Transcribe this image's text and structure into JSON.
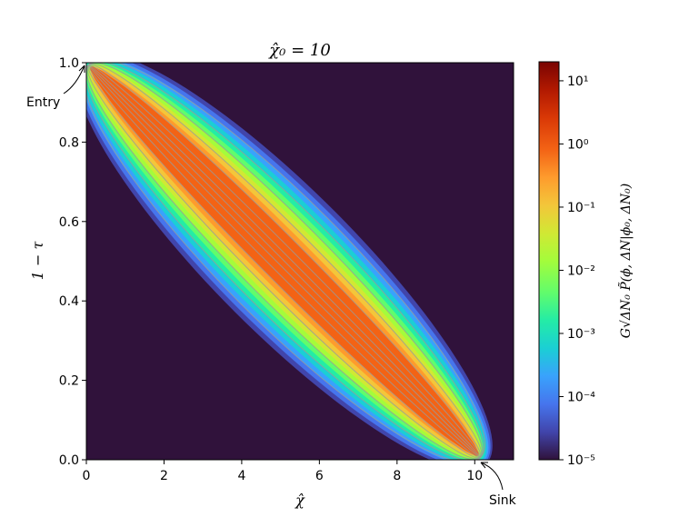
{
  "chart_data": {
    "type": "heatmap",
    "title": "χ̂₀ = 10",
    "xlabel": "χ̂",
    "ylabel": "1 − τ",
    "xlim": [
      0,
      11
    ],
    "ylim": [
      0,
      1
    ],
    "x_ticks": [
      0,
      2,
      4,
      6,
      8,
      10
    ],
    "x_tick_labels": [
      "0",
      "2",
      "4",
      "6",
      "8",
      "10"
    ],
    "y_ticks": [
      0,
      0.2,
      0.4,
      0.6,
      0.8,
      1.0
    ],
    "y_tick_labels": [
      "0.0",
      "0.2",
      "0.4",
      "0.6",
      "0.8",
      "1.0"
    ],
    "colorbar": {
      "label": "G√ΔN₀ P̃(ϕ, ΔN|ϕ₀, ΔN₀)",
      "scale": "log",
      "range": [
        1e-05,
        20
      ],
      "tick_values": [
        1e-05,
        0.0001,
        0.001,
        0.01,
        0.1,
        1,
        10
      ],
      "tick_labels": [
        "10⁻⁵",
        "10⁻⁴",
        "10⁻³",
        "10⁻²",
        "10⁻¹",
        "10⁰",
        "10¹"
      ],
      "colormap": "turbo"
    },
    "background_color": "#30123b",
    "contour_color": "#9a9a9a",
    "annotations": [
      {
        "text": "Entry",
        "x": 0,
        "y": 1.0
      },
      {
        "text": "Sink",
        "x": 10.2,
        "y": 0.0
      }
    ]
  }
}
